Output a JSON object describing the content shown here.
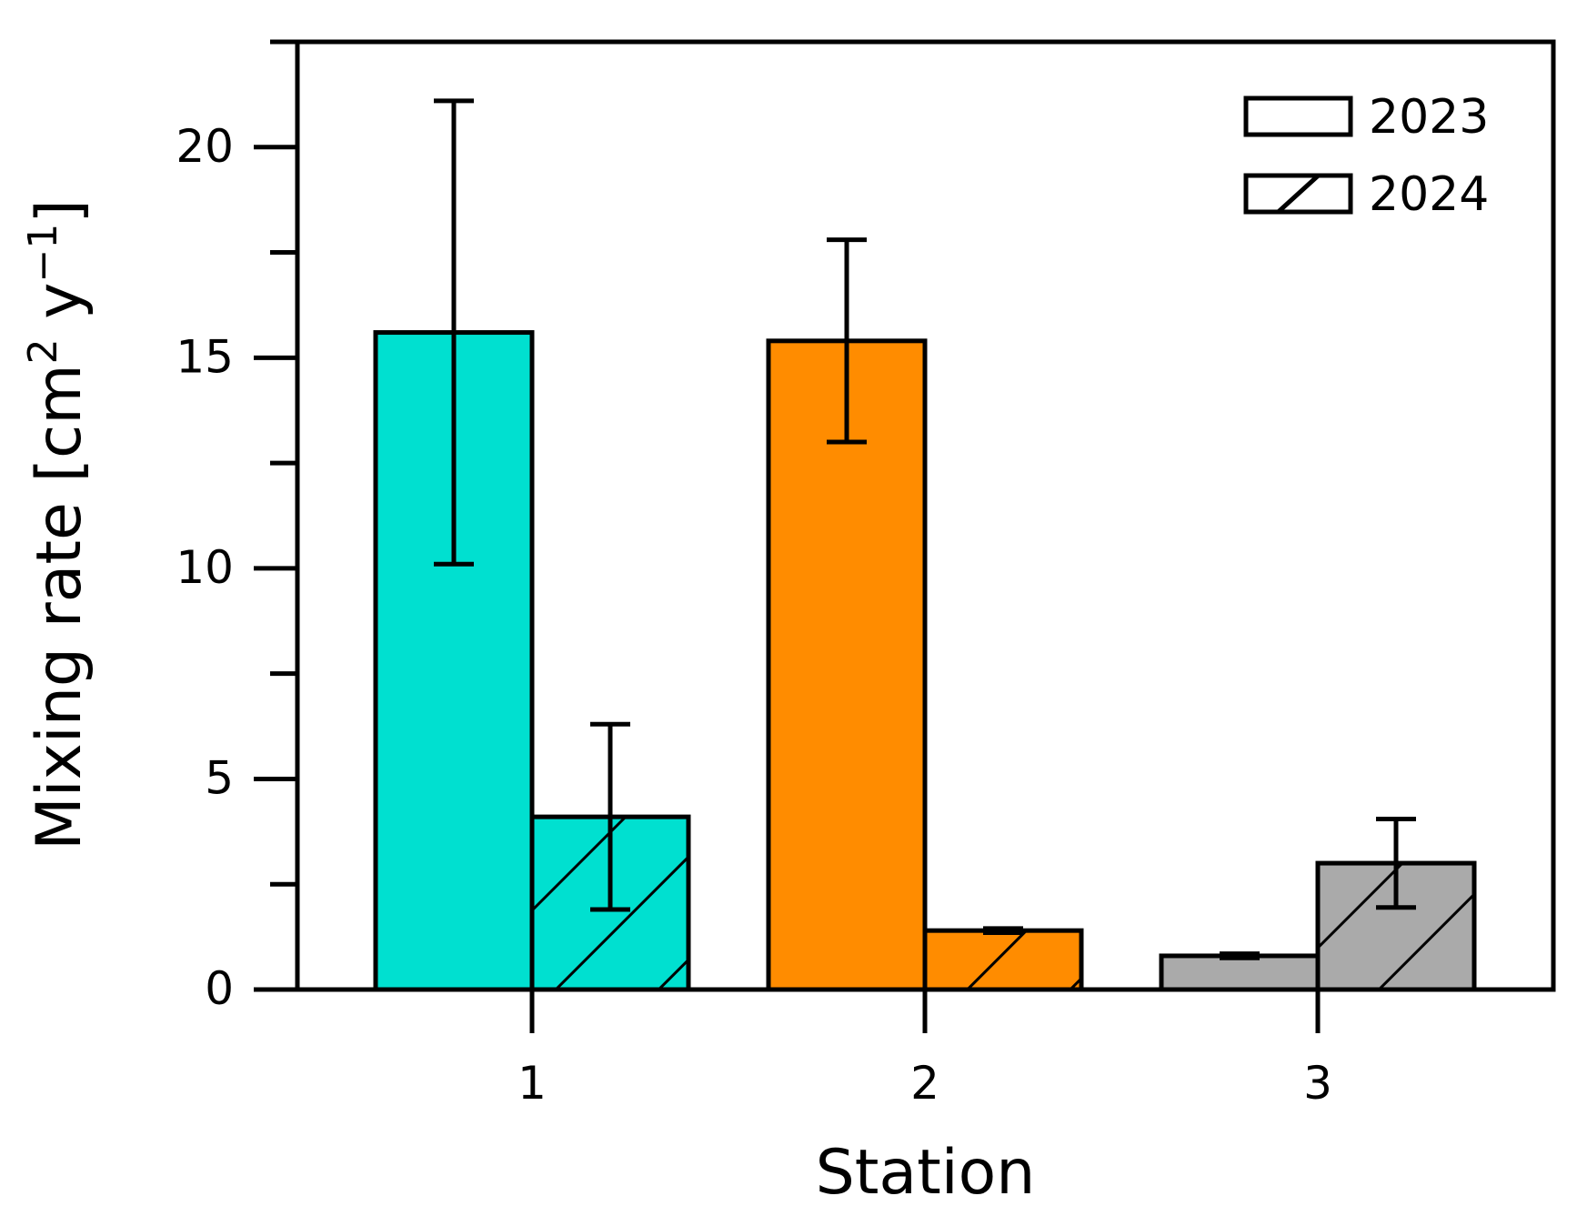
{
  "chart_data": {
    "type": "bar",
    "title": "",
    "xlabel": "Station",
    "ylabel": {
      "prefix": "Mixing rate [cm",
      "sup1": "2",
      "mid": " y",
      "sup2": "−1",
      "suffix": "]"
    },
    "categories": [
      "1",
      "2",
      "3"
    ],
    "ylim": [
      0,
      22.5
    ],
    "yticks": [
      0,
      5,
      10,
      15,
      20
    ],
    "ytick_labels": [
      "0",
      "5",
      "10",
      "15",
      "20"
    ],
    "grid": false,
    "legend_position": "top-right",
    "series": [
      {
        "name": "2023",
        "hatch": "none",
        "values": [
          15.6,
          15.4,
          0.8
        ],
        "errors": [
          5.5,
          2.4,
          0.05
        ]
      },
      {
        "name": "2024",
        "hatch": "diagonal",
        "values": [
          4.1,
          1.4,
          3.0
        ],
        "errors": [
          2.2,
          0.05,
          1.05
        ]
      }
    ],
    "category_colors": [
      "#00e0d0",
      "#ff8c00",
      "#aaaaaa"
    ]
  }
}
